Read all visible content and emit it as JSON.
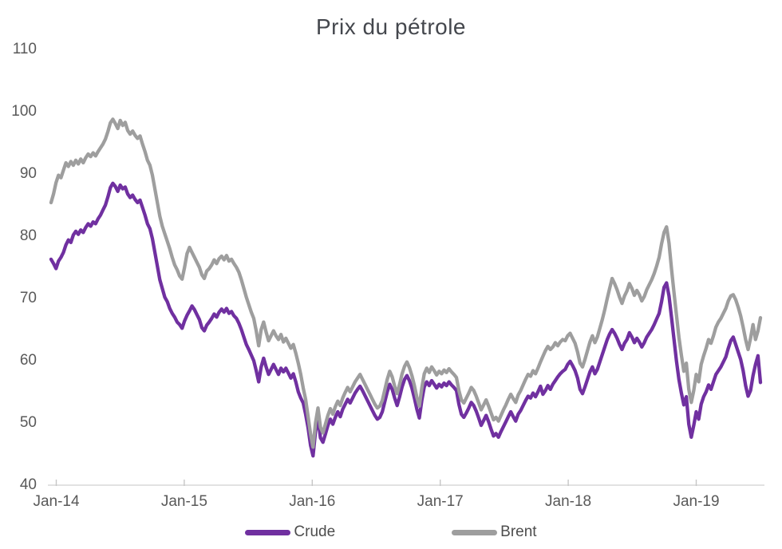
{
  "chart_data": {
    "type": "line",
    "title": "Prix du pétrole",
    "x_axis": {
      "tick_labels": [
        "Jan-14",
        "Jan-15",
        "Jan-16",
        "Jan-17",
        "Jan-18",
        "Jan-19"
      ],
      "interval": "weekly samples, Jan-2014 to mid-2019",
      "gridlines": false
    },
    "y_axis": {
      "min": 40,
      "max": 110,
      "step": 10
    },
    "legend_position": "bottom-center",
    "axis_color": "#D9D9D9",
    "tick_color": "#C6C6C6",
    "series": [
      {
        "name": "Crude",
        "color": "#7030A0",
        "values": [
          76.3,
          75.6,
          74.8,
          76.0,
          76.6,
          77.4,
          78.6,
          79.4,
          79.0,
          80.2,
          80.8,
          80.3,
          81.0,
          80.6,
          81.4,
          82.0,
          81.6,
          82.3,
          82.0,
          82.8,
          83.4,
          84.2,
          85.0,
          86.3,
          87.8,
          88.5,
          88.0,
          87.2,
          88.2,
          87.6,
          87.9,
          86.8,
          86.2,
          86.6,
          85.9,
          85.4,
          85.8,
          84.6,
          83.4,
          82.0,
          81.2,
          79.6,
          77.4,
          75.2,
          73.0,
          71.6,
          70.2,
          69.5,
          68.4,
          67.6,
          67.0,
          66.2,
          65.8,
          65.2,
          66.4,
          67.3,
          68.0,
          68.8,
          68.2,
          67.4,
          66.6,
          65.3,
          64.8,
          65.7,
          66.2,
          66.8,
          67.5,
          67.0,
          67.8,
          68.3,
          67.8,
          68.4,
          67.6,
          67.9,
          67.2,
          66.8,
          66.0,
          65.0,
          63.8,
          62.6,
          61.8,
          60.9,
          60.0,
          58.4,
          56.6,
          59.0,
          60.4,
          59.0,
          57.8,
          58.6,
          59.4,
          58.6,
          57.8,
          58.8,
          58.2,
          58.8,
          58.0,
          57.2,
          57.9,
          56.6,
          55.0,
          54.0,
          53.2,
          51.4,
          49.2,
          46.4,
          44.7,
          48.6,
          50.8,
          47.6,
          46.9,
          48.2,
          49.6,
          50.6,
          49.8,
          50.9,
          51.8,
          51.0,
          52.2,
          53.0,
          53.8,
          53.2,
          54.0,
          54.8,
          55.4,
          55.9,
          55.2,
          54.4,
          53.6,
          52.8,
          52.0,
          51.2,
          50.6,
          50.9,
          51.8,
          53.4,
          55.0,
          56.2,
          55.4,
          54.0,
          52.8,
          54.2,
          55.8,
          57.0,
          57.6,
          56.8,
          55.6,
          54.0,
          52.2,
          50.8,
          53.6,
          55.8,
          56.6,
          56.0,
          56.8,
          56.2,
          55.6,
          56.2,
          55.8,
          56.4,
          56.0,
          56.6,
          56.1,
          55.7,
          55.2,
          53.0,
          51.4,
          50.9,
          51.6,
          52.4,
          53.3,
          52.8,
          51.9,
          50.8,
          49.6,
          50.4,
          51.2,
          50.2,
          49.0,
          47.9,
          48.3,
          47.7,
          48.6,
          49.4,
          50.2,
          51.0,
          51.8,
          51.0,
          50.3,
          51.4,
          52.0,
          52.8,
          53.6,
          54.3,
          54.0,
          54.8,
          54.2,
          55.0,
          55.9,
          54.6,
          55.2,
          56.0,
          55.4,
          56.2,
          56.8,
          57.4,
          57.9,
          58.3,
          58.6,
          59.4,
          59.9,
          59.2,
          58.4,
          57.2,
          55.4,
          54.7,
          55.8,
          57.0,
          58.2,
          59.0,
          57.9,
          58.6,
          59.8,
          61.0,
          62.2,
          63.4,
          64.3,
          65.0,
          64.4,
          63.6,
          62.6,
          61.8,
          62.8,
          63.4,
          64.5,
          63.8,
          62.9,
          63.6,
          63.0,
          62.2,
          62.9,
          63.8,
          64.4,
          65.0,
          65.8,
          66.7,
          67.6,
          69.5,
          71.8,
          72.5,
          70.4,
          67.0,
          63.5,
          60.0,
          57.0,
          54.8,
          52.9,
          54.2,
          49.8,
          47.7,
          49.6,
          51.8,
          50.6,
          53.0,
          54.2,
          55.0,
          56.1,
          55.4,
          56.6,
          57.8,
          58.4,
          59.0,
          59.8,
          60.6,
          62.0,
          63.2,
          63.8,
          62.6,
          61.4,
          60.2,
          58.4,
          56.0,
          54.3,
          55.2,
          57.6,
          59.4,
          60.8,
          56.5
        ]
      },
      {
        "name": "Brent",
        "color": "#9E9E9E",
        "values": [
          85.4,
          86.8,
          88.6,
          89.8,
          89.4,
          90.6,
          91.8,
          91.2,
          92.0,
          91.4,
          92.2,
          91.6,
          92.4,
          91.8,
          92.6,
          93.2,
          92.8,
          93.4,
          92.9,
          93.6,
          94.2,
          94.8,
          95.6,
          96.8,
          98.2,
          98.8,
          98.1,
          97.3,
          98.6,
          97.8,
          98.3,
          97.0,
          96.4,
          96.9,
          96.2,
          95.7,
          96.1,
          94.8,
          93.6,
          92.2,
          91.4,
          89.8,
          87.6,
          85.4,
          83.2,
          81.6,
          80.4,
          79.2,
          78.0,
          76.6,
          75.4,
          74.6,
          73.6,
          73.1,
          75.0,
          77.2,
          78.2,
          77.4,
          76.6,
          75.8,
          75.0,
          73.8,
          73.2,
          74.4,
          74.8,
          75.4,
          76.2,
          75.6,
          76.4,
          76.8,
          76.2,
          76.9,
          76.0,
          76.3,
          75.6,
          75.0,
          74.2,
          73.0,
          71.6,
          70.2,
          69.0,
          67.8,
          66.8,
          64.8,
          62.4,
          65.0,
          66.2,
          64.6,
          63.2,
          64.0,
          64.8,
          64.0,
          63.4,
          64.2,
          63.0,
          63.6,
          62.8,
          62.0,
          62.6,
          61.2,
          59.6,
          57.8,
          55.6,
          53.8,
          51.0,
          48.2,
          46.1,
          50.0,
          52.4,
          49.3,
          48.4,
          49.8,
          51.2,
          52.3,
          51.4,
          52.6,
          53.5,
          52.8,
          54.0,
          54.9,
          55.7,
          55.0,
          55.8,
          56.6,
          57.2,
          57.8,
          57.0,
          56.2,
          55.4,
          54.6,
          53.8,
          53.0,
          52.4,
          52.7,
          53.6,
          55.3,
          57.0,
          58.3,
          57.4,
          55.9,
          54.7,
          56.2,
          57.9,
          59.1,
          59.8,
          58.9,
          57.6,
          56.0,
          54.1,
          52.7,
          55.6,
          57.9,
          58.8,
          58.1,
          59.0,
          58.4,
          57.7,
          58.3,
          57.9,
          58.5,
          58.1,
          58.7,
          58.2,
          57.8,
          57.3,
          55.2,
          53.7,
          53.2,
          54.0,
          54.8,
          55.7,
          55.2,
          54.3,
          53.2,
          52.1,
          52.9,
          53.7,
          52.7,
          51.6,
          50.5,
          50.9,
          50.3,
          51.2,
          52.1,
          52.9,
          53.8,
          54.6,
          53.9,
          53.3,
          54.5,
          55.2,
          56.1,
          57.0,
          57.8,
          57.5,
          58.4,
          57.9,
          58.8,
          59.8,
          60.7,
          61.6,
          62.3,
          61.8,
          62.2,
          62.9,
          62.4,
          63.0,
          63.4,
          63.2,
          64.0,
          64.4,
          63.6,
          62.8,
          61.4,
          59.6,
          59.0,
          60.2,
          61.6,
          63.0,
          64.0,
          62.9,
          63.8,
          65.2,
          66.6,
          68.2,
          70.0,
          71.6,
          73.2,
          72.4,
          71.4,
          70.2,
          69.2,
          70.4,
          71.2,
          72.4,
          71.6,
          70.5,
          71.3,
          70.6,
          69.6,
          70.3,
          71.4,
          72.2,
          73.0,
          74.0,
          75.2,
          76.6,
          78.8,
          80.6,
          81.5,
          78.9,
          74.8,
          71.0,
          67.4,
          63.8,
          60.9,
          58.3,
          59.6,
          55.4,
          53.3,
          55.2,
          57.8,
          56.6,
          59.4,
          60.8,
          62.0,
          63.4,
          62.8,
          64.0,
          65.4,
          66.2,
          66.8,
          67.6,
          68.4,
          69.6,
          70.4,
          70.6,
          69.8,
          68.6,
          67.2,
          65.4,
          63.4,
          61.8,
          63.6,
          65.8,
          63.4,
          64.8,
          66.9
        ]
      }
    ]
  },
  "legend": {
    "crude_label": "Crude",
    "brent_label": "Brent"
  }
}
